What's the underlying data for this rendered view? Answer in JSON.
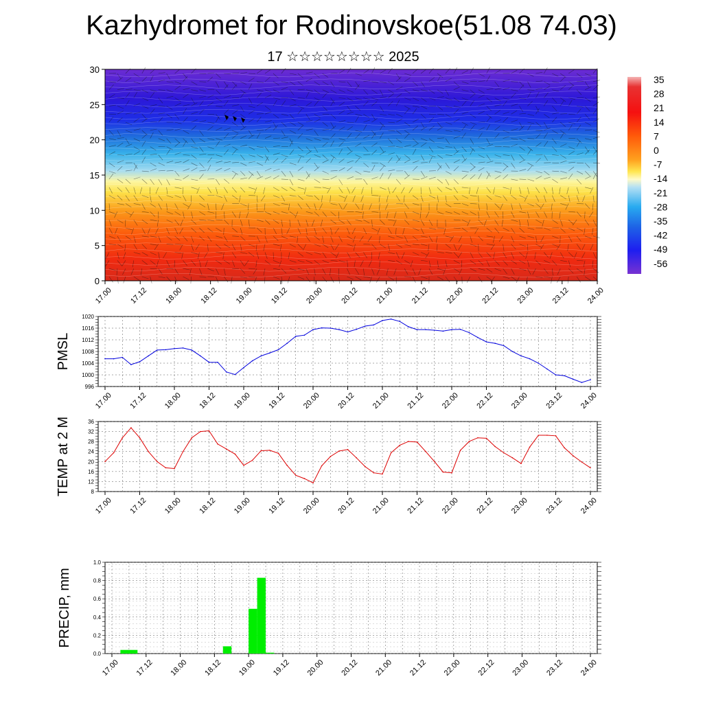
{
  "header": {
    "title": "Kazhydromet for Rodinovskoe(51.08 74.03)",
    "subtitle": "17 ☆☆☆☆☆☆☆☆ 2025"
  },
  "time_ticks": [
    "17.00",
    "17.12",
    "18.00",
    "18.12",
    "19.00",
    "19.12",
    "20.00",
    "20.12",
    "21.00",
    "21.12",
    "22.00",
    "22.12",
    "23.00",
    "23.12",
    "24.00"
  ],
  "colorbar": {
    "labels": [
      "35",
      "28",
      "21",
      "14",
      "7",
      "0",
      "-7",
      "-14",
      "-21",
      "-28",
      "-35",
      "-42",
      "-49",
      "-56"
    ]
  },
  "chart_data": [
    {
      "type": "heatmap",
      "title": "",
      "xlabel": "",
      "ylabel": "",
      "x_ticks": [
        "17.00",
        "17.12",
        "18.00",
        "18.12",
        "19.00",
        "19.12",
        "20.00",
        "20.12",
        "21.00",
        "21.12",
        "22.00",
        "22.12",
        "23.00",
        "23.12",
        "24.00"
      ],
      "y_ticks": [
        0,
        5,
        10,
        15,
        20,
        25,
        30
      ],
      "ylim": [
        0,
        30
      ],
      "value_range": [
        -56,
        35
      ],
      "overlay": "wind barbs and contour lines",
      "approx_profile_levels": [
        0,
        5,
        10,
        15,
        20,
        25,
        30
      ],
      "approx_profile_values": [
        30,
        24,
        14,
        1,
        -32,
        -52,
        -56
      ]
    },
    {
      "type": "line",
      "ylabel": "PMSL",
      "ylim": [
        996,
        1020
      ],
      "y_ticks": [
        996,
        1000,
        1004,
        1008,
        1012,
        1016,
        1020
      ],
      "x_ticks": [
        "17.00",
        "17.12",
        "18.00",
        "18.12",
        "19.00",
        "19.12",
        "20.00",
        "20.12",
        "21.00",
        "21.12",
        "22.00",
        "22.12",
        "23.00",
        "23.12",
        "24.00"
      ],
      "color": "#0000dd",
      "x": [
        0,
        3,
        6,
        9,
        12,
        15,
        18,
        21,
        24,
        27,
        30,
        33,
        36,
        39,
        42,
        45,
        48,
        51,
        54,
        57,
        60,
        63,
        66,
        69,
        72,
        75,
        78,
        81,
        84,
        87,
        90,
        93,
        96,
        99,
        102,
        105,
        108,
        111,
        114,
        117,
        120,
        123,
        126,
        129,
        132,
        135,
        138,
        141,
        144,
        147,
        150,
        153,
        156,
        159,
        162,
        165,
        168
      ],
      "values": [
        1005.5,
        1005.5,
        1006,
        1003.5,
        1004.5,
        1006.5,
        1008.5,
        1008.6,
        1009,
        1009.2,
        1008.5,
        1006.5,
        1004.3,
        1004.3,
        1001,
        1000.1,
        1002.5,
        1004.8,
        1006.5,
        1007.5,
        1008.6,
        1010.8,
        1013.2,
        1013.6,
        1015.5,
        1016.1,
        1016,
        1015.5,
        1014.7,
        1015.6,
        1016.7,
        1017.1,
        1018.6,
        1019.1,
        1018.3,
        1016.5,
        1015.5,
        1015.5,
        1015.3,
        1015,
        1015.5,
        1015.6,
        1014.5,
        1012.8,
        1011.3,
        1010.8,
        1010,
        1008,
        1006.5,
        1005.5,
        1004,
        1002,
        1000,
        999.7,
        998.5,
        997.4,
        998.3
      ]
    },
    {
      "type": "line",
      "ylabel": "TEMP at 2 M",
      "ylim": [
        8,
        36
      ],
      "y_ticks": [
        8,
        12,
        16,
        20,
        24,
        28,
        32,
        36
      ],
      "x_ticks": [
        "17.00",
        "17.12",
        "18.00",
        "18.12",
        "19.00",
        "19.12",
        "20.00",
        "20.12",
        "21.00",
        "21.12",
        "22.00",
        "22.12",
        "23.00",
        "23.12",
        "24.00"
      ],
      "color": "#dd0000",
      "x": [
        0,
        3,
        6,
        9,
        12,
        15,
        18,
        21,
        24,
        27,
        30,
        33,
        36,
        39,
        42,
        45,
        48,
        51,
        54,
        57,
        60,
        63,
        66,
        69,
        72,
        75,
        78,
        81,
        84,
        87,
        90,
        93,
        96,
        99,
        102,
        105,
        108,
        111,
        114,
        117,
        120,
        123,
        126,
        129,
        132,
        135,
        138,
        141,
        144,
        147,
        150,
        153,
        156,
        159,
        162,
        165,
        168
      ],
      "values": [
        20,
        23.5,
        29.5,
        33.5,
        29.5,
        24,
        20,
        17.5,
        17.2,
        24,
        29.5,
        32,
        32.3,
        27,
        25,
        23,
        18.5,
        20.5,
        24.3,
        24.5,
        23.3,
        18.5,
        14.5,
        13.2,
        11.5,
        18.3,
        22,
        24.2,
        24.8,
        21.5,
        18,
        15.5,
        15,
        23.5,
        26.5,
        28,
        27.8,
        24,
        20,
        15.8,
        15.5,
        24.5,
        28,
        29.5,
        29.3,
        26,
        23.5,
        21.5,
        19.2,
        25.8,
        30.5,
        30.5,
        30.3,
        25.5,
        22.3,
        19.8,
        17.5
      ]
    },
    {
      "type": "bar",
      "ylabel": "PRECIP, mm",
      "ylim": [
        0,
        1.0
      ],
      "y_ticks": [
        "0.0",
        "0.2",
        "0.4",
        "0.6",
        "0.8",
        "1.0"
      ],
      "x_ticks": [
        "17.00",
        "17.12",
        "18.00",
        "18.12",
        "19.00",
        "19.12",
        "20.00",
        "20.12",
        "21.00",
        "21.12",
        "22.00",
        "22.12",
        "23.00",
        "23.12",
        "24.00"
      ],
      "color": "#00ee00",
      "bars": [
        {
          "x_start": 3,
          "x_end": 9,
          "value": 0.04
        },
        {
          "x_start": 39,
          "x_end": 42,
          "value": 0.08
        },
        {
          "x_start": 48,
          "x_end": 51,
          "value": 0.49
        },
        {
          "x_start": 51,
          "x_end": 54,
          "value": 0.83
        },
        {
          "x_start": 54,
          "x_end": 57,
          "value": 0.01
        }
      ]
    }
  ]
}
